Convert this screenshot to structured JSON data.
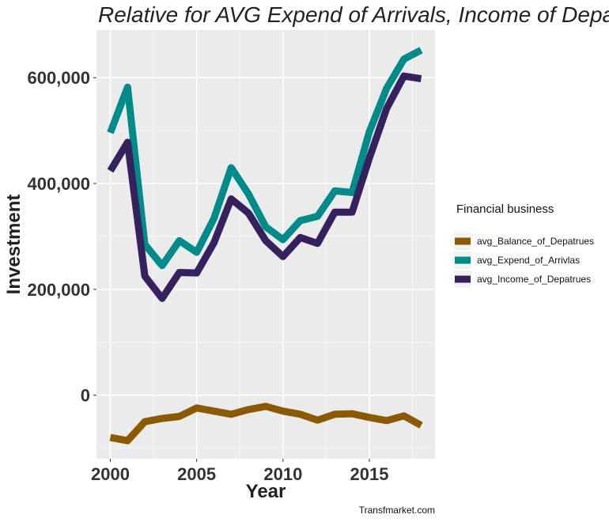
{
  "chart_data": {
    "type": "line",
    "title": "Relative  for AVG Expend of Arrivals, Income of Depart",
    "xlabel": "Year",
    "ylabel": "Investment",
    "xlim": [
      1999.2,
      2018.8
    ],
    "ylim": [
      -120000,
      690000
    ],
    "x_ticks": [
      2000,
      2005,
      2010,
      2015
    ],
    "x_tick_labels": [
      "2000",
      "2005",
      "2010",
      "2015"
    ],
    "y_ticks": [
      0,
      200000,
      400000,
      600000
    ],
    "y_tick_labels": [
      "0",
      "200,000",
      "400,000",
      "600,000"
    ],
    "grid": true,
    "legend_position": "right",
    "legend_title": "Financial business",
    "caption": "Transfmarket.com",
    "x": [
      2000,
      2001,
      2002,
      2003,
      2004,
      2005,
      2006,
      2007,
      2008,
      2009,
      2010,
      2011,
      2012,
      2013,
      2014,
      2015,
      2016,
      2017,
      2018
    ],
    "series": [
      {
        "name": "avg_Balance_of_Depatrues",
        "color": "#8B5A00",
        "values": [
          -80000,
          -86000,
          -50000,
          -44000,
          -40000,
          -24000,
          -30000,
          -36000,
          -27000,
          -21000,
          -30000,
          -36000,
          -47000,
          -36000,
          -35000,
          -42000,
          -48000,
          -39000,
          -57000
        ]
      },
      {
        "name": "avg_Expend_of_Arrivlas",
        "color": "#008B8B",
        "values": [
          496000,
          582000,
          285000,
          245000,
          292000,
          270000,
          334000,
          430000,
          380000,
          318000,
          294000,
          330000,
          338000,
          386000,
          383000,
          498000,
          580000,
          635000,
          652000
        ]
      },
      {
        "name": "avg_Income_of_Depatrues",
        "color": "#36215E",
        "values": [
          424000,
          478000,
          225000,
          183000,
          232000,
          231000,
          288000,
          371000,
          344000,
          292000,
          262000,
          298000,
          287000,
          346000,
          346000,
          448000,
          542000,
          603000,
          598000
        ]
      }
    ]
  }
}
